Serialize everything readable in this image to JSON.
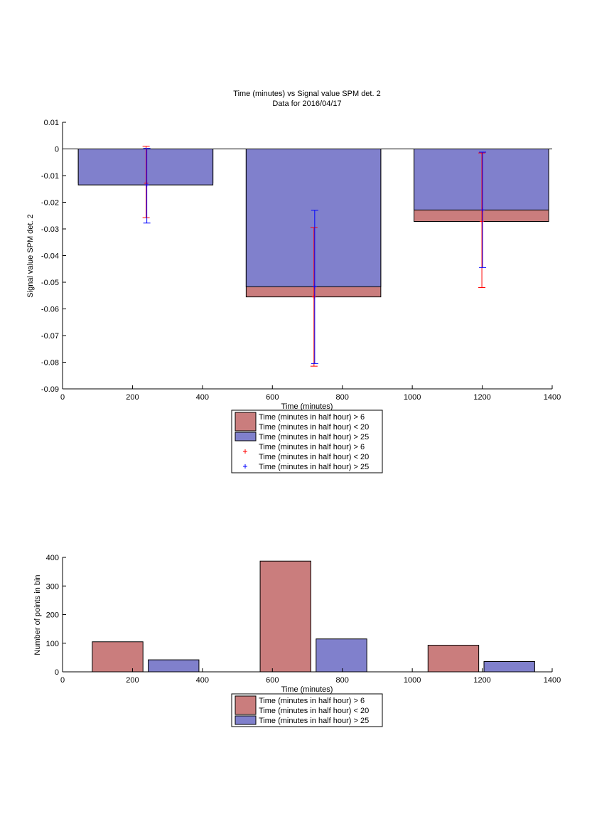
{
  "colors": {
    "red_fill": "#ca7d7d",
    "blue_fill": "#8080cc",
    "red_marker": "#ff0000",
    "blue_marker": "#0000ff"
  },
  "chart_data": [
    {
      "type": "bar",
      "title": "Time (minutes) vs Signal value SPM det. 2",
      "subtitle": "Data for 2016/04/17",
      "xlabel": "Time (minutes)",
      "ylabel": "Signal value SPM det. 2",
      "xlim": [
        0,
        1400
      ],
      "ylim": [
        -0.09,
        0.01
      ],
      "xticks": [
        "0",
        "200",
        "400",
        "600",
        "800",
        "1000",
        "1200",
        "1400"
      ],
      "xtick_values": [
        0,
        200,
        400,
        600,
        800,
        1000,
        1200,
        1400
      ],
      "yticks": [
        "0.01",
        "0",
        "-0.01",
        "-0.02",
        "-0.03",
        "-0.04",
        "-0.05",
        "-0.06",
        "-0.07",
        "-0.08",
        "-0.09"
      ],
      "ytick_values": [
        0.01,
        0,
        -0.01,
        -0.02,
        -0.03,
        -0.04,
        -0.05,
        -0.06,
        -0.07,
        -0.08,
        -0.09
      ],
      "bins": [
        {
          "x_start": 45,
          "x_end": 430,
          "error_x": 240
        },
        {
          "x_start": 525,
          "x_end": 910,
          "error_x": 720
        },
        {
          "x_start": 1005,
          "x_end": 1390,
          "error_x": 1200
        }
      ],
      "series": [
        {
          "name": "Time (minutes in half hour) > 6\nTime (minutes in half hour) < 20",
          "kind": "bar",
          "color": "#ca7d7d",
          "values": [
            -0.0128,
            -0.0555,
            -0.0272
          ]
        },
        {
          "name": "Time (minutes in half hour) > 25",
          "kind": "bar",
          "color": "#8080cc",
          "values": [
            -0.0135,
            -0.0517,
            -0.0229
          ]
        },
        {
          "name": "Time (minutes in half hour) > 6\nTime (minutes in half hour) < 20",
          "kind": "errorbar",
          "color": "#ff0000",
          "values": [
            -0.0128,
            -0.0555,
            -0.0272
          ],
          "upper": [
            0.001,
            -0.0295,
            -0.0015
          ],
          "lower": [
            -0.0258,
            -0.0815,
            -0.052
          ]
        },
        {
          "name": "Time (minutes in half hour) > 25",
          "kind": "errorbar",
          "color": "#0000ff",
          "values": [
            -0.0135,
            -0.0517,
            -0.0229
          ],
          "upper": [
            0.0002,
            -0.023,
            -0.0012
          ],
          "lower": [
            -0.0278,
            -0.0805,
            -0.0445
          ]
        }
      ],
      "legend": {
        "placement": "below",
        "entries": [
          {
            "lines": [
              "Time (minutes in half hour) > 6",
              "Time (minutes in half hour) < 20"
            ],
            "symbol": "patch",
            "color": "#ca7d7d"
          },
          {
            "lines": [
              "Time (minutes in half hour) > 25"
            ],
            "symbol": "patch",
            "color": "#8080cc"
          },
          {
            "lines": [
              "Time (minutes in half hour) > 6",
              "Time (minutes in half hour) < 20"
            ],
            "symbol": "+",
            "color": "#ff0000"
          },
          {
            "lines": [
              "Time (minutes in half hour) > 25"
            ],
            "symbol": "+",
            "color": "#0000ff"
          }
        ]
      }
    },
    {
      "type": "bar",
      "title": "",
      "xlabel": "Time (minutes)",
      "ylabel": "Number of points in bin",
      "xlim": [
        0,
        1400
      ],
      "ylim": [
        0,
        400
      ],
      "xticks": [
        "0",
        "200",
        "400",
        "600",
        "800",
        "1000",
        "1200",
        "1400"
      ],
      "xtick_values": [
        0,
        200,
        400,
        600,
        800,
        1000,
        1200,
        1400
      ],
      "yticks": [
        "400",
        "300",
        "200",
        "100",
        "0"
      ],
      "ytick_values": [
        400,
        300,
        200,
        100,
        0
      ],
      "bars": [
        {
          "series": 0,
          "x_start": 85,
          "x_end": 230,
          "value": 105
        },
        {
          "series": 1,
          "x_start": 245,
          "x_end": 390,
          "value": 42
        },
        {
          "series": 0,
          "x_start": 565,
          "x_end": 710,
          "value": 387
        },
        {
          "series": 1,
          "x_start": 725,
          "x_end": 870,
          "value": 115
        },
        {
          "series": 0,
          "x_start": 1045,
          "x_end": 1190,
          "value": 93
        },
        {
          "series": 1,
          "x_start": 1205,
          "x_end": 1350,
          "value": 36
        }
      ],
      "series": [
        {
          "name": "Time (minutes in half hour) > 6\nTime (minutes in half hour) < 20",
          "color": "#ca7d7d"
        },
        {
          "name": "Time (minutes in half hour) > 25",
          "color": "#8080cc"
        }
      ],
      "legend": {
        "placement": "below",
        "entries": [
          {
            "lines": [
              "Time (minutes in half hour) > 6",
              "Time (minutes in half hour) < 20"
            ],
            "symbol": "patch",
            "color": "#ca7d7d"
          },
          {
            "lines": [
              "Time (minutes in half hour) > 25"
            ],
            "symbol": "patch",
            "color": "#8080cc"
          }
        ]
      }
    }
  ]
}
